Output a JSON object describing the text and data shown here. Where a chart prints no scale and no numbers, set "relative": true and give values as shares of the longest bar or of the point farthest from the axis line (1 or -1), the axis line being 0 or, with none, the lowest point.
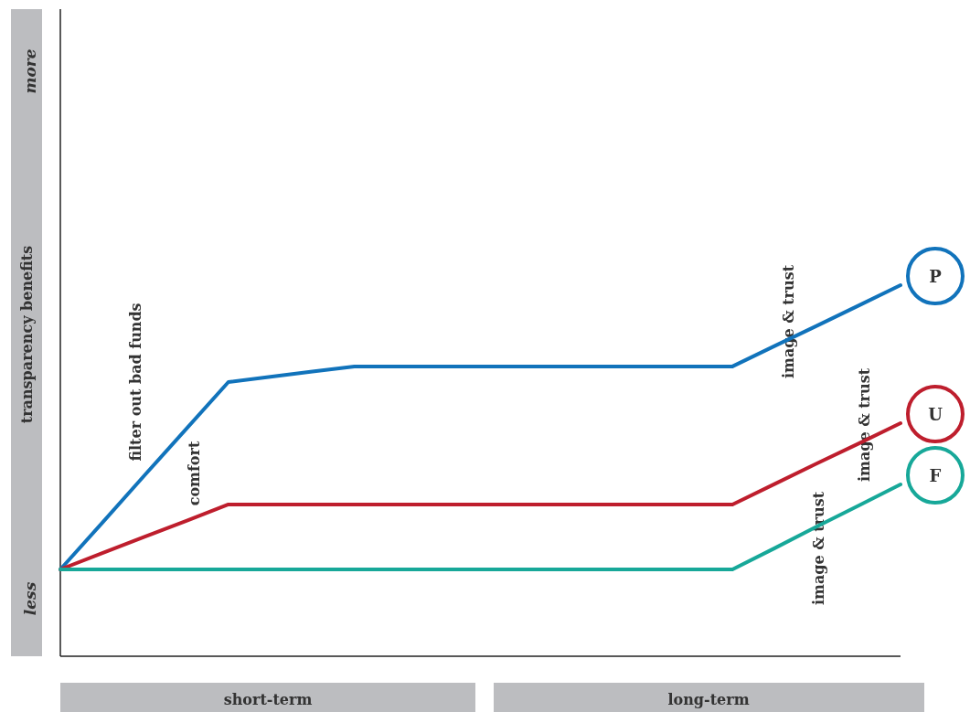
{
  "chart_data": {
    "type": "line",
    "relative": true,
    "ylabel": "transparency benefits",
    "categories": [
      null,
      null,
      null,
      null,
      null,
      null,
      null,
      null,
      null,
      null,
      null,
      null,
      null,
      null,
      null,
      null,
      null,
      null,
      null,
      null,
      null
    ],
    "annotations": [
      "less",
      "more",
      "short-term",
      "long-term",
      "filter out bad funds",
      "comfort",
      "image & trust",
      "image & trust",
      "image & trust"
    ],
    "series": [
      {
        "name": "P",
        "color": "#1173bb",
        "values": [
          0.234,
          0.36,
          0.487,
          0.613,
          0.739,
          0.753,
          0.767,
          0.781,
          0.781,
          0.781,
          0.781,
          0.781,
          0.781,
          0.781,
          0.781,
          0.781,
          0.781,
          0.836,
          0.89,
          0.945,
          1
        ]
      },
      {
        "name": "U",
        "color": "#be1e2d",
        "values": [
          0.234,
          0.278,
          0.322,
          0.365,
          0.409,
          0.409,
          0.409,
          0.409,
          0.409,
          0.409,
          0.409,
          0.409,
          0.409,
          0.409,
          0.409,
          0.409,
          0.409,
          0.464,
          0.519,
          0.573,
          0.628
        ]
      },
      {
        "name": "F",
        "color": "#17a899",
        "values": [
          0.234,
          0.234,
          0.234,
          0.234,
          0.234,
          0.234,
          0.234,
          0.234,
          0.234,
          0.234,
          0.234,
          0.234,
          0.234,
          0.234,
          0.234,
          0.234,
          0.234,
          0.291,
          0.349,
          0.406,
          0.463
        ]
      }
    ]
  }
}
